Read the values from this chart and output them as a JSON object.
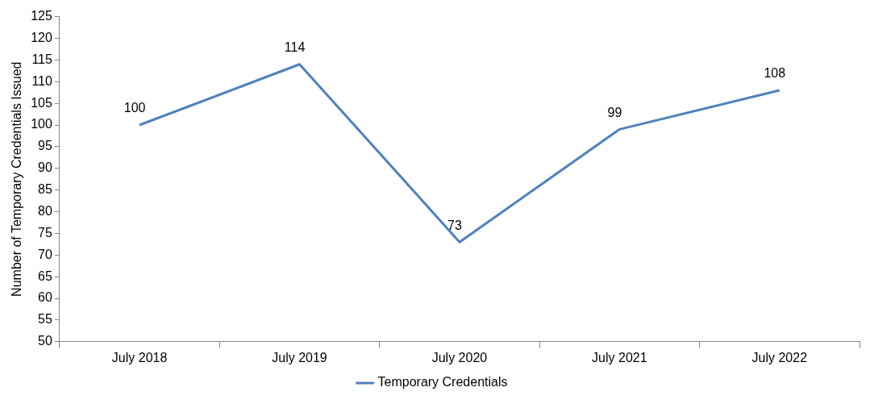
{
  "chart_data": {
    "type": "line",
    "ylabel": "Number of Temporary Credentials Issued",
    "categories": [
      "July 2018",
      "July 2019",
      "July 2020",
      "July 2021",
      "July 2022"
    ],
    "series": [
      {
        "name": "Temporary Credentials",
        "color": "#4f81bd",
        "values": [
          100,
          114,
          73,
          99,
          108
        ]
      }
    ],
    "ylim": [
      50,
      125
    ],
    "yticks": [
      50,
      55,
      60,
      65,
      70,
      75,
      80,
      85,
      90,
      95,
      100,
      105,
      110,
      115,
      120,
      125
    ],
    "grid": false,
    "legend": "bottom",
    "marker": "none",
    "line_style": "solid",
    "data_labels": true
  }
}
